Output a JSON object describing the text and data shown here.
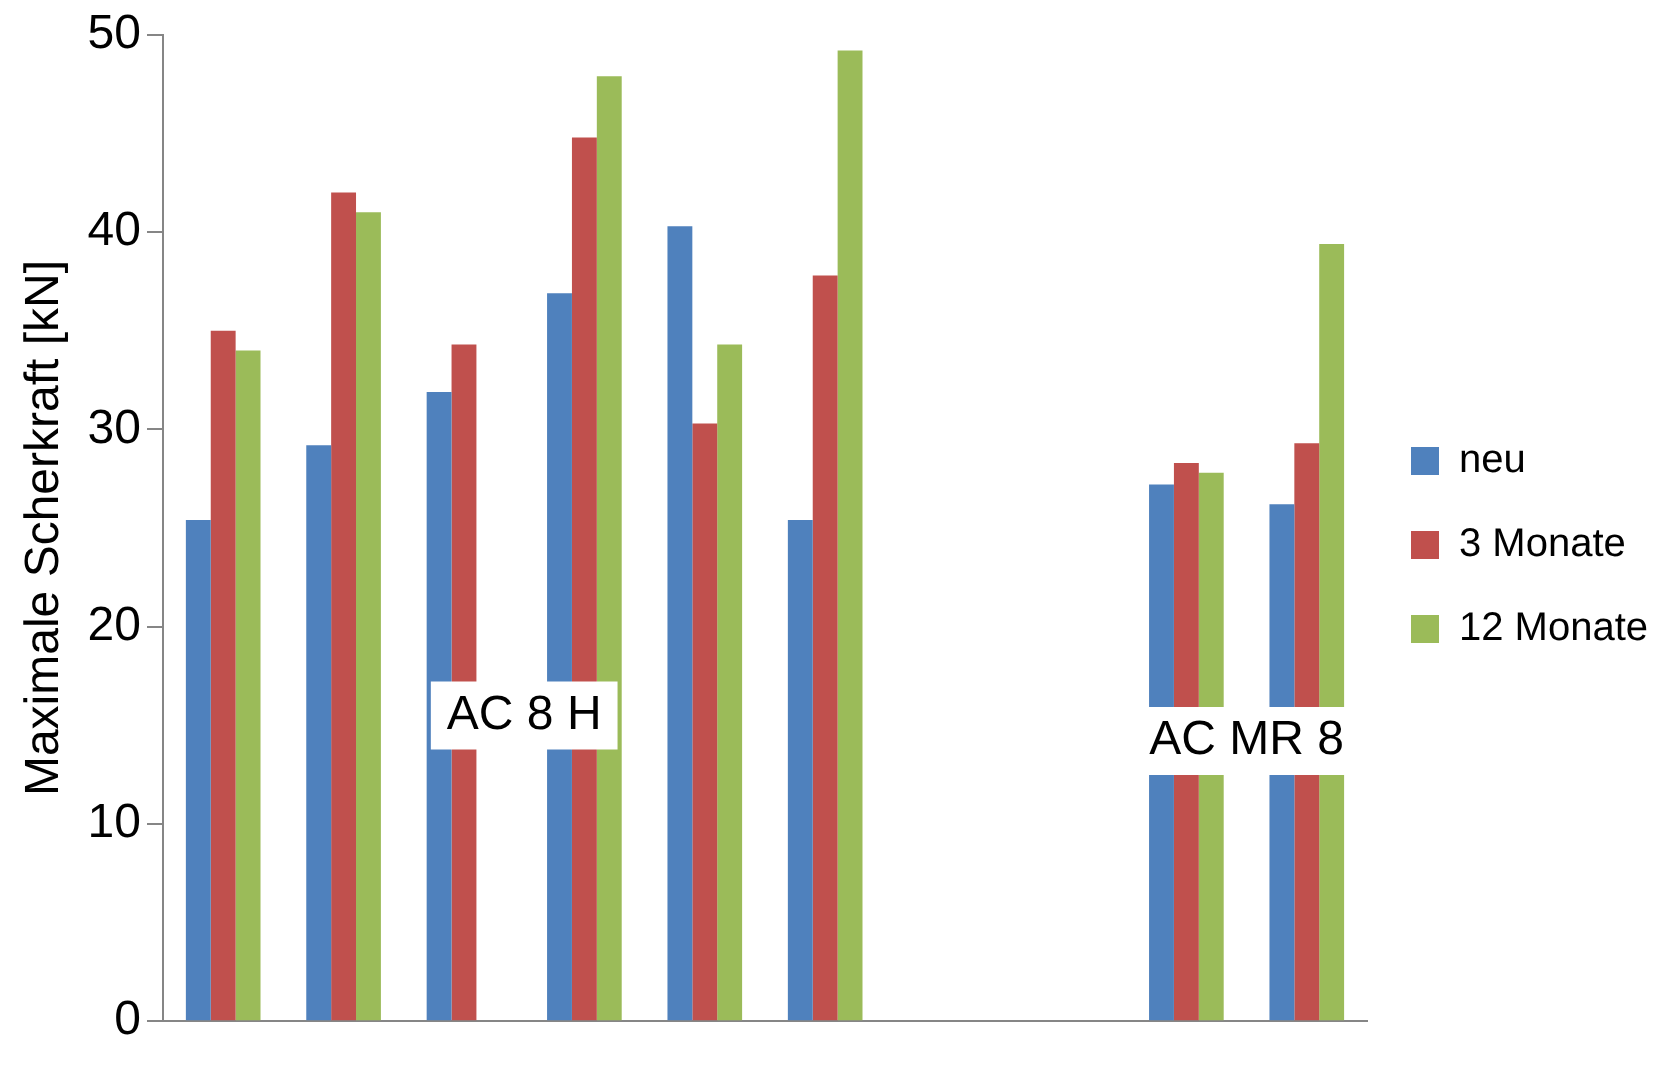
{
  "chart_data": {
    "type": "bar",
    "ylabel": "Maximale Scherkraft [kN]",
    "categories": [
      null,
      null,
      null,
      null,
      null,
      null,
      null,
      null,
      null,
      null
    ],
    "series": [
      {
        "name": "neu",
        "color": "#4f81bd",
        "values": [
          25.4,
          29.2,
          31.9,
          36.9,
          40.3,
          25.4,
          null,
          null,
          27.2,
          26.2
        ]
      },
      {
        "name": "3 Monate",
        "color": "#c0504d",
        "values": [
          35,
          42,
          34.3,
          44.8,
          30.3,
          37.8,
          null,
          null,
          28.3,
          29.3
        ]
      },
      {
        "name": "12 Monate",
        "color": "#9bbb59",
        "values": [
          34,
          41,
          null,
          47.9,
          34.3,
          49.2,
          null,
          null,
          27.8,
          39.4
        ]
      }
    ],
    "ylim": [
      0,
      50
    ],
    "yticks": [
      0,
      10,
      20,
      30,
      40,
      50
    ],
    "grid": false,
    "legend": "right",
    "annotations": [
      "AC 8 H",
      "AC MR 8"
    ]
  }
}
